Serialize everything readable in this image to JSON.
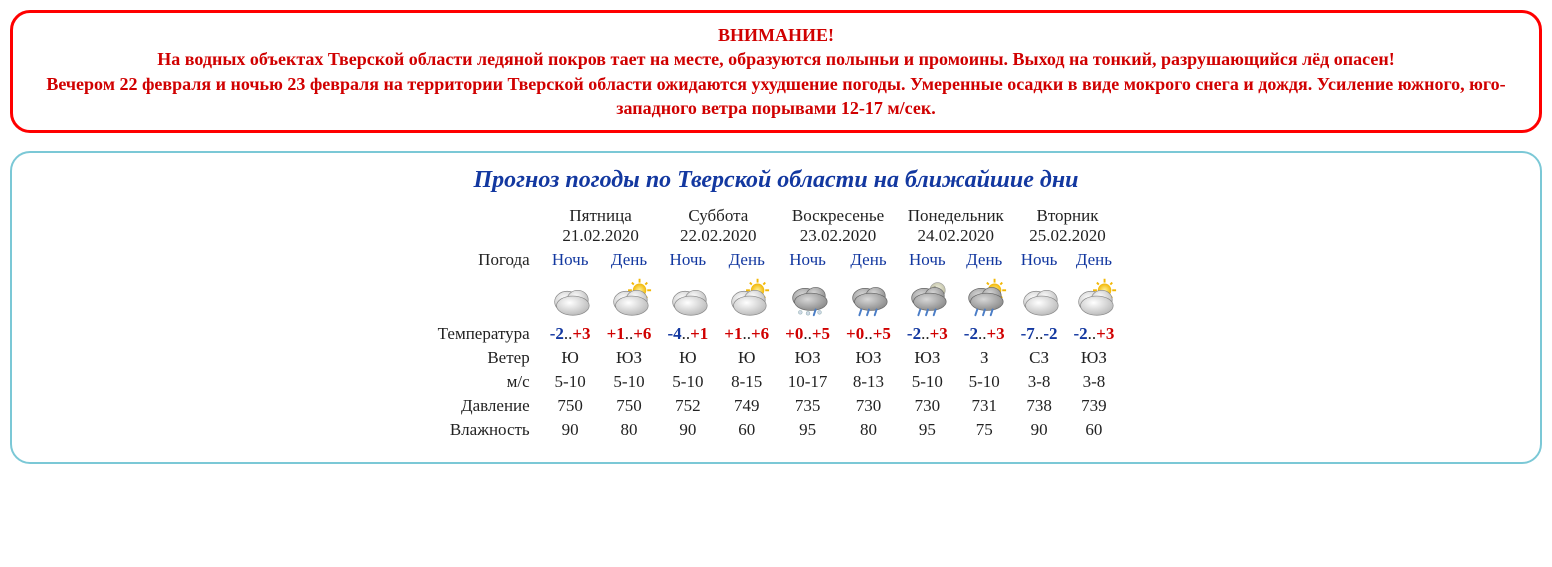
{
  "warning": {
    "title": "ВНИМАНИЕ!",
    "line1": "На водных объектах Тверской области ледяной покров тает на месте, образуются полыньи и промоины. Выход на тонкий, разрушающийся лёд опасен!",
    "line2": "Вечером 22 февраля и ночью 23 февраля на территории Тверской области ожидаются ухудшение погоды. Умеренные осадки в виде мокрого снега и дождя. Усиление южного, юго-западного ветра порывами 12-17 м/сек."
  },
  "forecast": {
    "title": "Прогноз погоды по Тверской области на ближайшие дни",
    "row_labels": {
      "weather": "Погода",
      "temperature": "Температура",
      "wind": "Ветер",
      "wind_speed": "м/с",
      "pressure": "Давление",
      "humidity": "Влажность"
    },
    "period_labels": {
      "night": "Ночь",
      "day": "День"
    },
    "colors": {
      "neg": "#1338a0",
      "pos": "#d00000",
      "border_warn": "#ff0000",
      "border_forecast": "#7bc8d6"
    },
    "days": [
      {
        "weekday": "Пятница",
        "date": "21.02.2020",
        "night": {
          "icon": "cloudy",
          "temp_lo": "-2",
          "temp_hi": "+3",
          "wind_dir": "Ю",
          "wind_spd": "5-10",
          "pressure": "750",
          "humidity": "90"
        },
        "day": {
          "icon": "partly_sun",
          "temp_lo": "+1",
          "temp_hi": "+6",
          "wind_dir": "ЮЗ",
          "wind_spd": "5-10",
          "pressure": "750",
          "humidity": "80"
        }
      },
      {
        "weekday": "Суббота",
        "date": "22.02.2020",
        "night": {
          "icon": "cloudy",
          "temp_lo": "-4",
          "temp_hi": "+1",
          "wind_dir": "Ю",
          "wind_spd": "5-10",
          "pressure": "752",
          "humidity": "90"
        },
        "day": {
          "icon": "partly_sun",
          "temp_lo": "+1",
          "temp_hi": "+6",
          "wind_dir": "Ю",
          "wind_spd": "8-15",
          "pressure": "749",
          "humidity": "60"
        }
      },
      {
        "weekday": "Воскресенье",
        "date": "23.02.2020",
        "night": {
          "icon": "sleet",
          "temp_lo": "+0",
          "temp_hi": "+5",
          "wind_dir": "ЮЗ",
          "wind_spd": "10-17",
          "pressure": "735",
          "humidity": "95"
        },
        "day": {
          "icon": "rain",
          "temp_lo": "+0",
          "temp_hi": "+5",
          "wind_dir": "ЮЗ",
          "wind_spd": "8-13",
          "pressure": "730",
          "humidity": "80"
        }
      },
      {
        "weekday": "Понедельник",
        "date": "24.02.2020",
        "night": {
          "icon": "rain_moon",
          "temp_lo": "-2",
          "temp_hi": "+3",
          "wind_dir": "ЮЗ",
          "wind_spd": "5-10",
          "pressure": "730",
          "humidity": "95"
        },
        "day": {
          "icon": "rain_sun",
          "temp_lo": "-2",
          "temp_hi": "+3",
          "wind_dir": "З",
          "wind_spd": "5-10",
          "pressure": "731",
          "humidity": "75"
        }
      },
      {
        "weekday": "Вторник",
        "date": "25.02.2020",
        "night": {
          "icon": "cloudy",
          "temp_lo": "-7",
          "temp_hi": "-2",
          "wind_dir": "СЗ",
          "wind_spd": "3-8",
          "pressure": "738",
          "humidity": "90"
        },
        "day": {
          "icon": "partly_sun",
          "temp_lo": "-2",
          "temp_hi": "+3",
          "wind_dir": "ЮЗ",
          "wind_spd": "3-8",
          "pressure": "739",
          "humidity": "60"
        }
      }
    ]
  }
}
